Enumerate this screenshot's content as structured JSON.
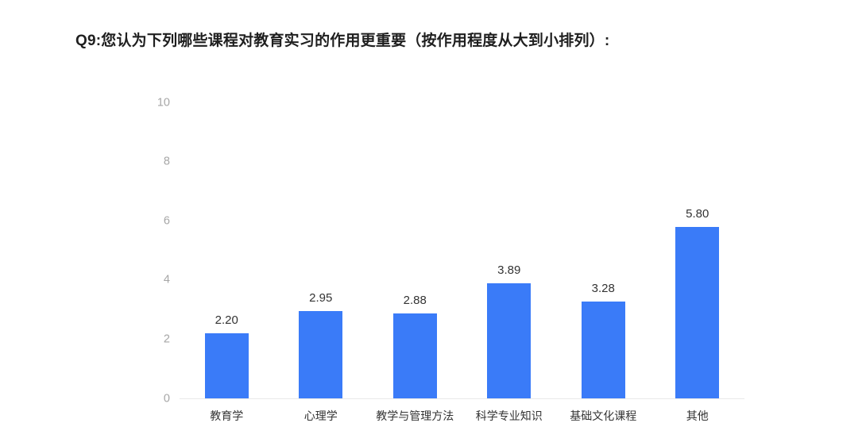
{
  "title": "Q9:您认为下列哪些课程对教育实习的作用更重要（按作用程度从大到小排列）:",
  "chart_data": {
    "type": "bar",
    "title": "Q9:您认为下列哪些课程对教育实习的作用更重要（按作用程度从大到小排列）:",
    "categories": [
      "教育学",
      "心理学",
      "教学与管理方法",
      "科学专业知识",
      "基础文化课程",
      "其他"
    ],
    "values": [
      2.2,
      2.95,
      2.88,
      3.89,
      3.28,
      5.8
    ],
    "value_labels": [
      "2.20",
      "2.95",
      "2.88",
      "3.89",
      "3.28",
      "5.80"
    ],
    "xlabel": "",
    "ylabel": "",
    "ylim": [
      0,
      10
    ],
    "y_ticks": [
      0,
      2,
      4,
      6,
      8,
      10
    ],
    "grid": false,
    "legend": "none",
    "colors": {
      "bar": "#3A7BF8",
      "axis_tick_label": "#a6a6a6",
      "value_label": "#333333",
      "category_label": "#333333",
      "baseline": "#e9e9e9",
      "background": "#ffffff",
      "title": "#1f1f1f"
    }
  }
}
